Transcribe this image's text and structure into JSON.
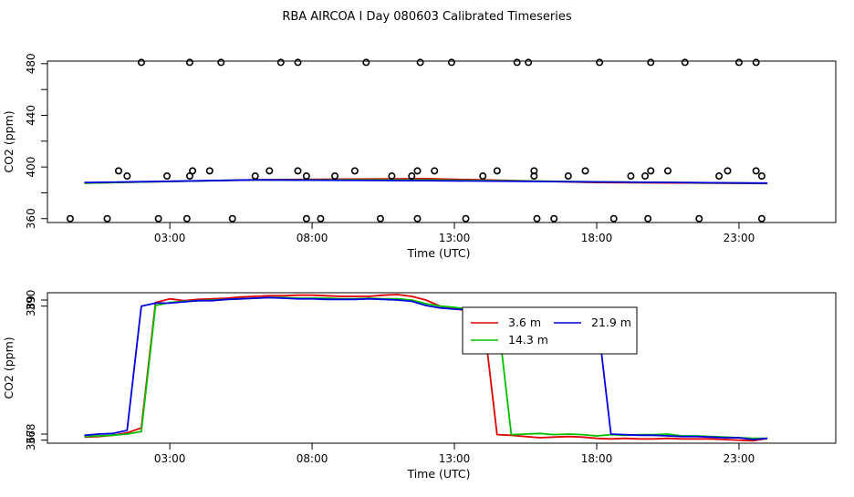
{
  "figure_title": "RBA AIRCOA I  Day 080603  Calibrated Timeseries",
  "chart_data": [
    {
      "type": "scatter",
      "xlabel": "Time (UTC)",
      "ylabel": "CO2 (ppm)",
      "xlim": [
        -1.3,
        26.4
      ],
      "ylim": [
        357,
        482
      ],
      "x_ticks": [
        "03:00",
        "08:00",
        "13:00",
        "18:00",
        "23:00"
      ],
      "x_tick_values": [
        3,
        8,
        13,
        18,
        23
      ],
      "y_ticks": [
        "360",
        "400",
        "440",
        "480"
      ],
      "y_tick_values": [
        360,
        400,
        440,
        480
      ],
      "y_minor_ticks": [
        380,
        420,
        460
      ],
      "flag_points": {
        "x": [
          1.5,
          0.8,
          -0.5,
          2.0,
          1.2,
          2.9,
          3.7,
          2.6,
          3.7,
          3.8,
          3.6,
          4.4,
          4.8,
          5.2,
          6.0,
          6.5,
          6.9,
          7.5,
          7.5,
          7.8,
          7.8,
          8.3,
          8.8,
          9.5,
          9.9,
          10.4,
          10.8,
          11.5,
          11.7,
          11.8,
          11.7,
          12.3,
          12.9,
          13.4,
          14.0,
          14.5,
          15.2,
          15.8,
          15.8,
          15.9,
          15.6,
          16.5,
          17.0,
          17.6,
          18.1,
          18.6,
          19.2,
          19.9,
          19.9,
          19.7,
          19.8,
          20.5,
          21.1,
          21.6,
          22.3,
          23.0,
          22.6,
          23.6,
          23.6,
          23.8,
          23.8
        ],
        "y": [
          393,
          360,
          360,
          481,
          397,
          393,
          481,
          360,
          393,
          397,
          360,
          397,
          481,
          360,
          393,
          397,
          481,
          481,
          397,
          393,
          360,
          360,
          393,
          397,
          481,
          360,
          393,
          393,
          397,
          481,
          360,
          397,
          481,
          360,
          393,
          397,
          481,
          397,
          393,
          360,
          481,
          360,
          393,
          397,
          481,
          360,
          393,
          397,
          481,
          393,
          360,
          397,
          481,
          360,
          393,
          481,
          397,
          481,
          397,
          393,
          360
        ]
      },
      "series": [
        {
          "name": "3.6 m",
          "color": "#e00000",
          "x": [
            0,
            6,
            12,
            18,
            24
          ],
          "y": [
            387.5,
            390.1,
            391,
            388,
            387.2
          ]
        },
        {
          "name": "14.3 m",
          "color": "#00c000",
          "x": [
            0,
            6,
            12,
            18,
            24
          ],
          "y": [
            387.5,
            390,
            390,
            388.5,
            387.4
          ]
        },
        {
          "name": "21.9 m",
          "color": "#0000e0",
          "x": [
            0,
            6,
            12,
            18,
            24
          ],
          "y": [
            387.9,
            390,
            389.4,
            388.4,
            387.5
          ]
        }
      ]
    },
    {
      "type": "line",
      "xlabel": "Time (UTC)",
      "ylabel": "CO2 (ppm)",
      "xlim": [
        -1.3,
        26.4
      ],
      "ylim": [
        366.5,
        391.2
      ],
      "x_ticks": [
        "03:00",
        "08:00",
        "13:00",
        "18:00",
        "23:00"
      ],
      "x_tick_values": [
        3,
        8,
        13,
        18,
        23
      ],
      "y_ticks": [
        "367",
        "368",
        "389",
        "390"
      ],
      "y_tick_values": [
        367,
        368,
        389,
        390
      ],
      "legend": {
        "position": "top-center-right",
        "entries": [
          "3.6 m",
          "21.9 m",
          "14.3 m"
        ]
      },
      "series": [
        {
          "name": "3.6 m",
          "color": "#e00000",
          "x": [
            0,
            0.5,
            1,
            1.5,
            2,
            2.5,
            3,
            3.5,
            4,
            4.5,
            5,
            5.5,
            6,
            6.5,
            7,
            7.5,
            8,
            8.5,
            9,
            9.5,
            10,
            10.5,
            11,
            11.5,
            12,
            12.5,
            13,
            13.5,
            14,
            14.5,
            15,
            15.5,
            16,
            16.5,
            17,
            17.5,
            18,
            18.5,
            19,
            19.5,
            20,
            20.5,
            21,
            21.5,
            22,
            22.5,
            23,
            23.5,
            24
          ],
          "y": [
            367.5,
            367.6,
            367.8,
            368.2,
            369.0,
            389.6,
            390.2,
            389.9,
            390.1,
            390.2,
            390.3,
            390.5,
            390.6,
            390.7,
            390.7,
            390.8,
            390.8,
            390.7,
            390.6,
            390.6,
            390.6,
            390.8,
            390.9,
            390.6,
            390.0,
            389.0,
            388.6,
            388.2,
            387.9,
            367.9,
            367.8,
            367.6,
            367.4,
            367.5,
            367.6,
            367.5,
            367.3,
            367.2,
            367.3,
            367.2,
            367.2,
            367.3,
            367.2,
            367.2,
            367.2,
            367.1,
            367.0,
            366.9,
            367.3
          ]
        },
        {
          "name": "14.3 m",
          "color": "#00c000",
          "x": [
            0,
            0.5,
            1,
            1.5,
            2,
            2.5,
            3,
            3.5,
            4,
            4.5,
            5,
            5.5,
            6,
            6.5,
            7,
            7.5,
            8,
            8.5,
            9,
            9.5,
            10,
            10.5,
            11,
            11.5,
            12,
            12.5,
            13,
            13.5,
            14,
            14.5,
            15,
            15.5,
            16,
            16.5,
            17,
            17.5,
            18,
            18.5,
            19,
            19.5,
            20,
            20.5,
            21,
            21.5,
            22,
            22.5,
            23,
            23.5,
            24
          ],
          "y": [
            367.6,
            367.7,
            367.8,
            368.0,
            368.4,
            389.1,
            389.6,
            389.8,
            389.9,
            390.0,
            390.1,
            390.2,
            390.3,
            390.4,
            390.4,
            390.3,
            390.3,
            390.3,
            390.2,
            390.2,
            390.3,
            390.2,
            390.2,
            390.0,
            389.4,
            389.0,
            388.8,
            388.5,
            388.2,
            388.2,
            367.9,
            368.0,
            368.1,
            367.9,
            368.0,
            367.9,
            367.7,
            367.9,
            367.8,
            367.9,
            367.9,
            368.0,
            367.7,
            367.7,
            367.6,
            367.5,
            367.4,
            367.3,
            367.3
          ]
        },
        {
          "name": "21.9 m",
          "color": "#0000e0",
          "x": [
            0,
            0.5,
            1,
            1.5,
            2,
            2.5,
            3,
            3.5,
            4,
            4.5,
            5,
            5.5,
            6,
            6.5,
            7,
            7.5,
            8,
            8.5,
            9,
            9.5,
            10,
            10.5,
            11,
            11.5,
            12,
            12.5,
            13,
            13.5,
            14,
            14.5,
            15,
            15.5,
            16,
            16.5,
            17,
            17.5,
            18,
            18.5,
            19,
            19.5,
            20,
            20.5,
            21,
            21.5,
            22,
            22.5,
            23,
            23.5,
            24
          ],
          "y": [
            367.8,
            368.0,
            368.1,
            368.6,
            389.0,
            389.5,
            389.5,
            389.7,
            389.9,
            389.9,
            390.1,
            390.2,
            390.3,
            390.4,
            390.3,
            390.2,
            390.2,
            390.1,
            390.1,
            390.1,
            390.2,
            390.1,
            390.0,
            389.8,
            389.1,
            388.7,
            388.5,
            388.4,
            388.3,
            388.2,
            388.1,
            388.2,
            388.2,
            388.3,
            388.1,
            388.2,
            388.0,
            368.0,
            367.9,
            367.8,
            367.8,
            367.7,
            367.6,
            367.6,
            367.5,
            367.4,
            367.4,
            367.1,
            367.3
          ]
        }
      ]
    }
  ]
}
